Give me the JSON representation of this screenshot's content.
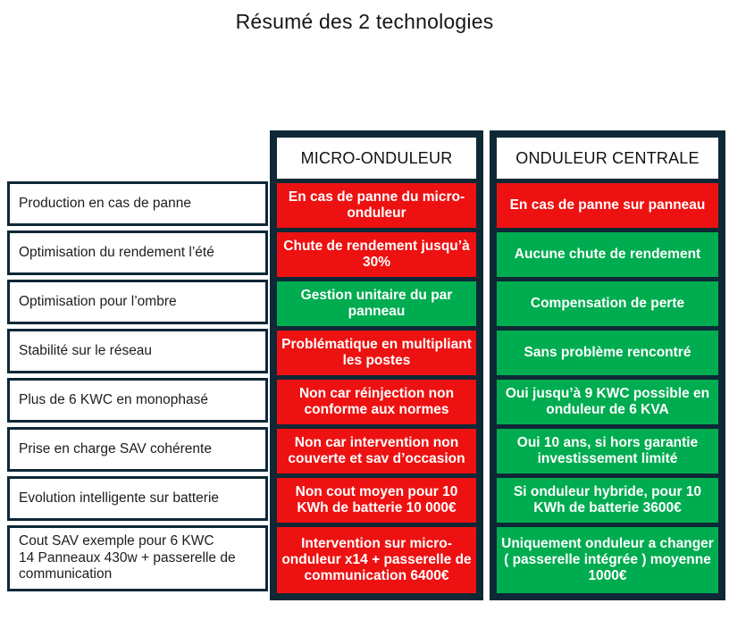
{
  "title": "Résumé des 2 technologies",
  "colors": {
    "red": "#ee1111",
    "green": "#00ac50",
    "dark": "#0e2836"
  },
  "columns": {
    "micro": "MICRO-ONDULEUR",
    "centrale": "ONDULEUR CENTRALE"
  },
  "rows": [
    {
      "label": "Production en cas de panne",
      "micro": {
        "text": "En cas de panne du micro-onduleur",
        "color": "red"
      },
      "centrale": {
        "text": "En cas de panne sur panneau",
        "color": "red"
      }
    },
    {
      "label": "Optimisation du rendement l’été",
      "micro": {
        "text": "Chute de rendement jusqu’à 30%",
        "color": "red"
      },
      "centrale": {
        "text": "Aucune chute de rendement",
        "color": "green"
      }
    },
    {
      "label": "Optimisation pour l’ombre",
      "micro": {
        "text": "Gestion unitaire du par panneau",
        "color": "green"
      },
      "centrale": {
        "text": "Compensation de perte",
        "color": "green"
      }
    },
    {
      "label": "Stabilité sur le réseau",
      "micro": {
        "text": "Problématique en multipliant les postes",
        "color": "red"
      },
      "centrale": {
        "text": "Sans problème rencontré",
        "color": "green"
      }
    },
    {
      "label": "Plus de 6 KWC en monophasé",
      "micro": {
        "text": "Non car réinjection non conforme aux normes",
        "color": "red"
      },
      "centrale": {
        "text": "Oui jusqu’à 9 KWC possible en onduleur de 6 KVA",
        "color": "green"
      }
    },
    {
      "label": "Prise en charge SAV cohérente",
      "micro": {
        "text": "Non car intervention non couverte et sav d’occasion",
        "color": "red"
      },
      "centrale": {
        "text": "Oui 10 ans, si hors garantie investissement limité",
        "color": "green"
      }
    },
    {
      "label": "Evolution intelligente sur batterie",
      "micro": {
        "text": "Non cout moyen pour 10 KWh de batterie 10 000€",
        "color": "red"
      },
      "centrale": {
        "text": "Si onduleur hybride, pour 10 KWh de batterie 3600€",
        "color": "green"
      }
    },
    {
      "label": "Cout SAV exemple pour 6 KWC\n14 Panneaux 430w + passerelle de\ncommunication",
      "micro": {
        "text": "Intervention sur micro-onduleur x14 + passerelle de communication 6400€",
        "color": "red"
      },
      "centrale": {
        "text": "Uniquement onduleur a changer ( passerelle intégrée ) moyenne 1000€",
        "color": "green"
      }
    }
  ]
}
